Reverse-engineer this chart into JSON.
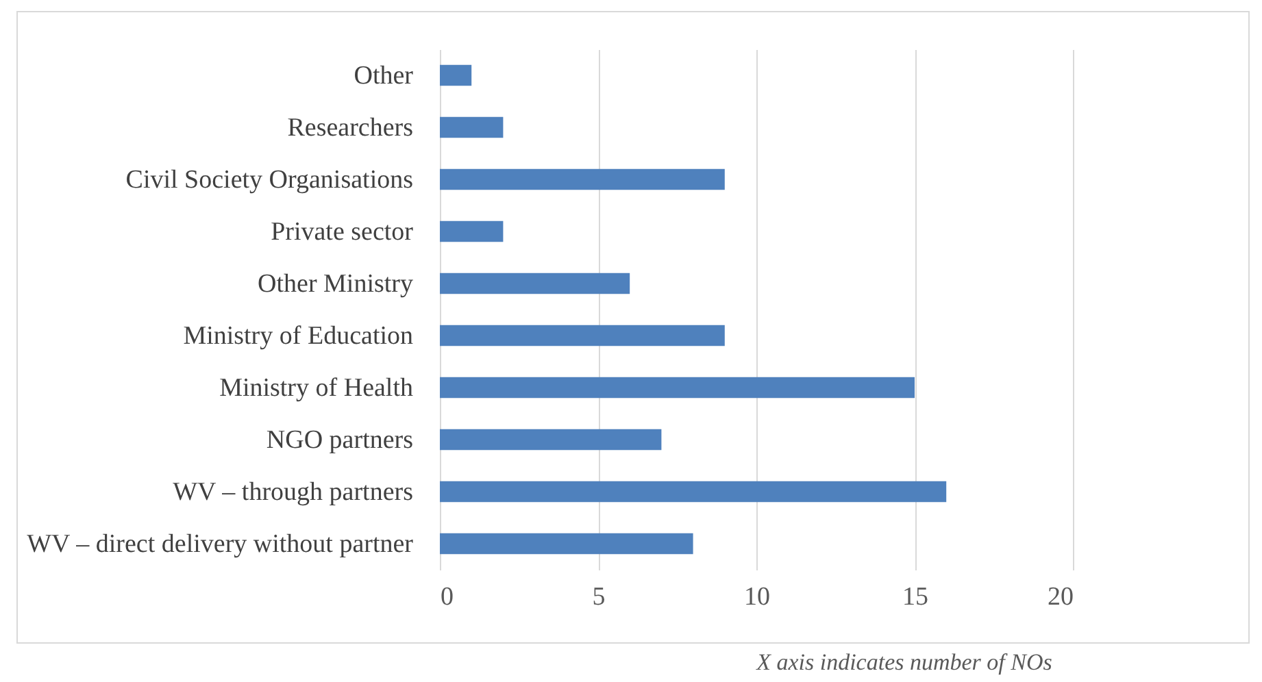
{
  "chart_data": {
    "type": "bar",
    "orientation": "horizontal",
    "categories": [
      "Other",
      "Researchers",
      "Civil Society Organisations",
      "Private sector",
      "Other Ministry",
      "Ministry of Education",
      "Ministry of Health",
      "NGO partners",
      "WV – through partners",
      "WV – direct delivery without partner"
    ],
    "values": [
      1,
      2,
      9,
      2,
      6,
      9,
      15,
      7,
      16,
      8
    ],
    "color": "#4f81bd",
    "xlim": [
      0,
      20
    ],
    "xticks": [
      0,
      5,
      10,
      15,
      20
    ],
    "grid": "x",
    "annotations": [
      "X axis indicates number of NOs"
    ]
  }
}
